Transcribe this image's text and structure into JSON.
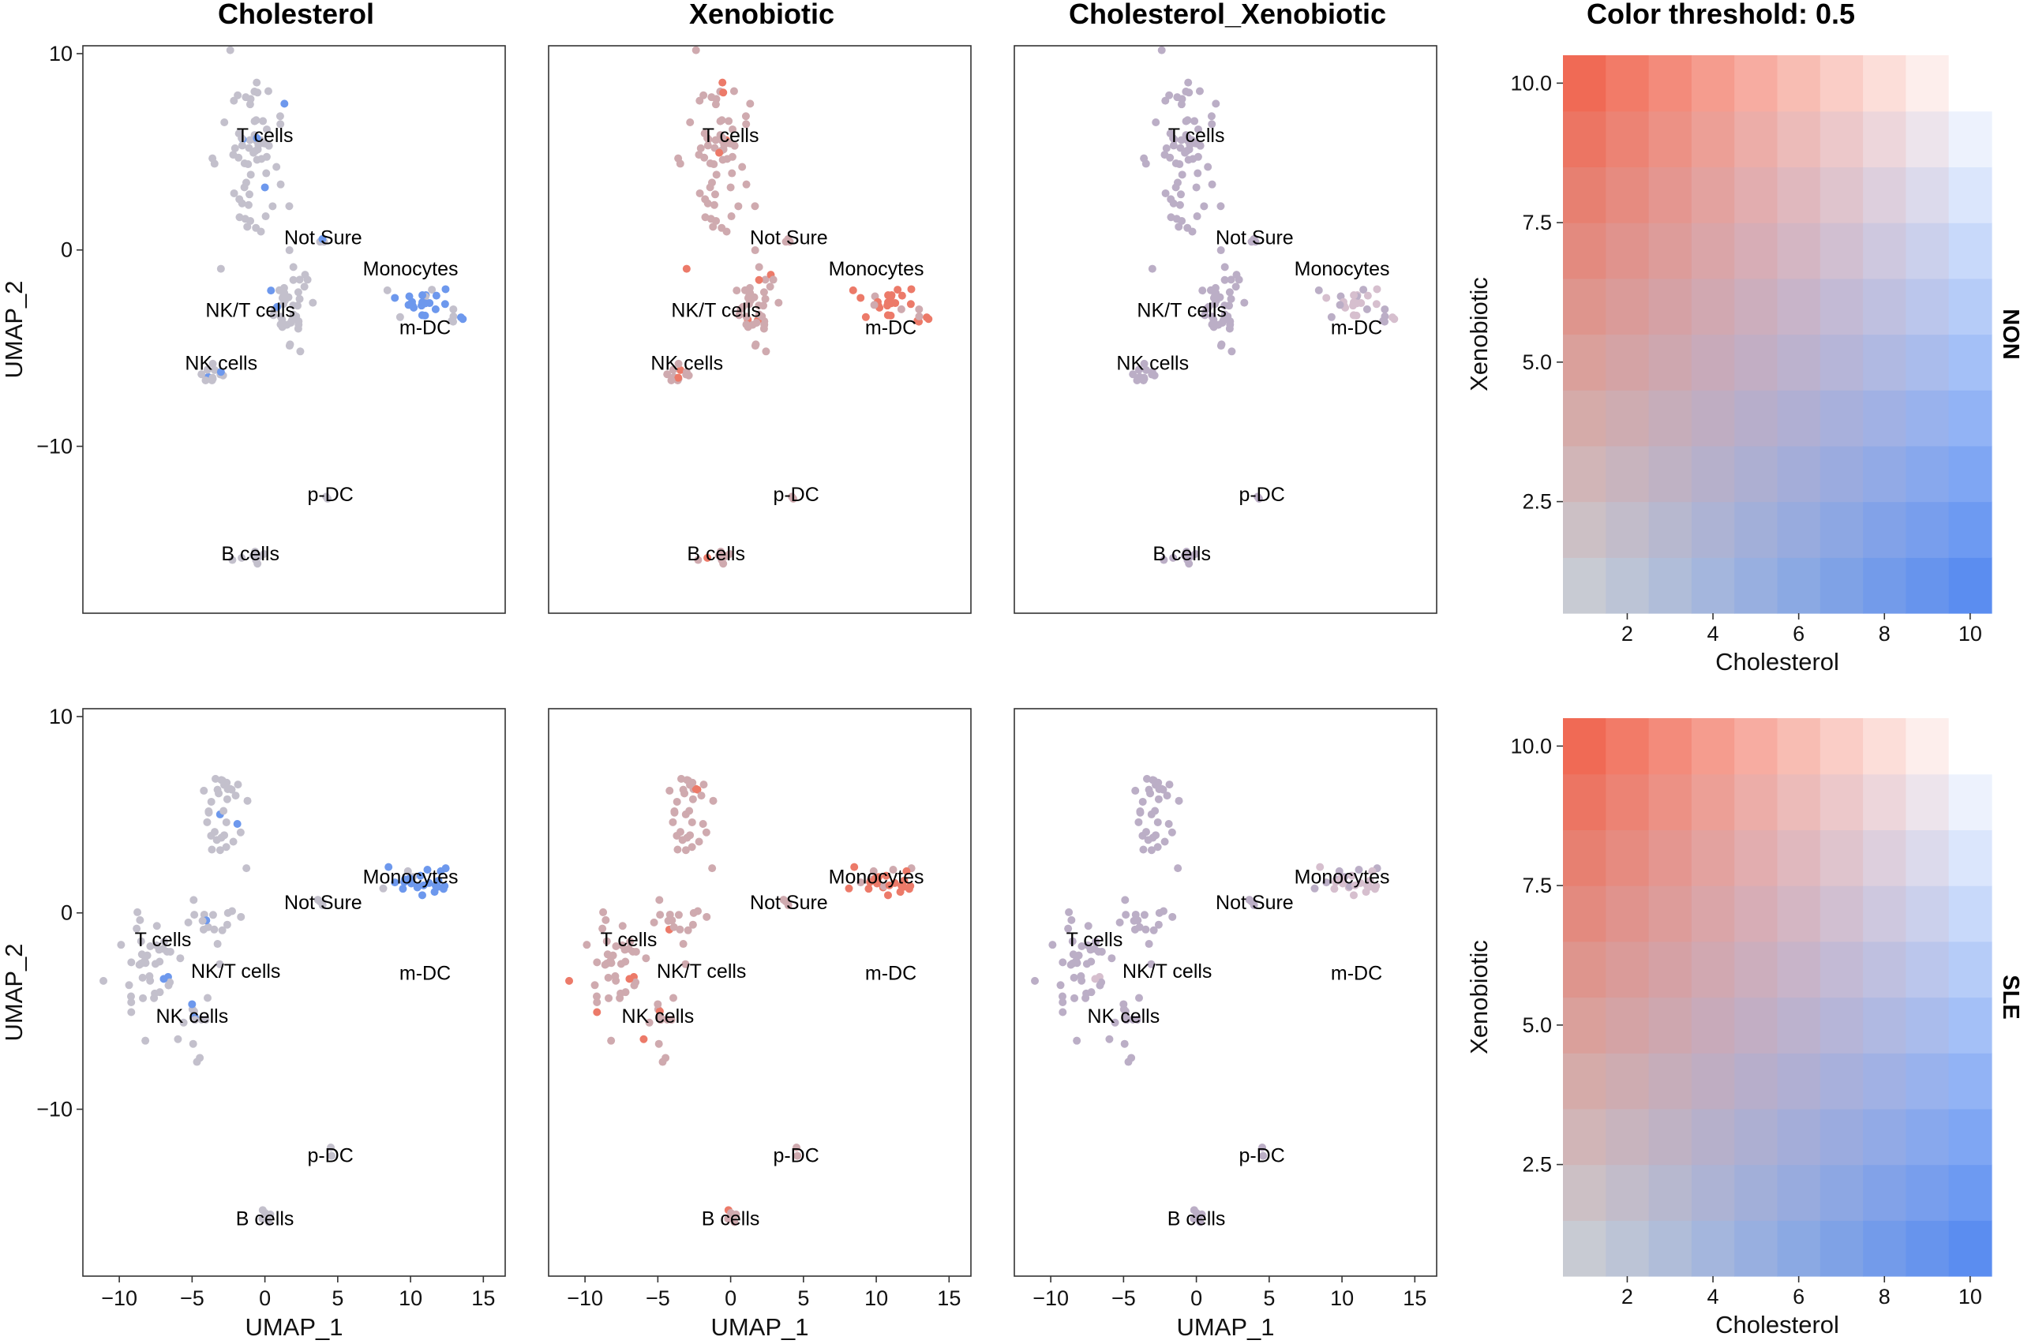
{
  "columns": [
    "Cholesterol",
    "Xenobiotic",
    "Cholesterol_Xenobiotic",
    "Color threshold: 0.5"
  ],
  "colors": {
    "gray": "#c8cbd3",
    "cholesterol": "#5b8df0",
    "xenobiotic": "#f06a55",
    "high_both": "#ffffff"
  },
  "chart_data": [
    {
      "type": "scatter",
      "kind": "umap",
      "row": "NON",
      "xlabel": "UMAP_1",
      "ylabel": "UMAP_2",
      "xlim": [
        -12.5,
        16.5
      ],
      "ylim": [
        -18.5,
        10.4
      ],
      "xticks": [
        -10,
        -5,
        0,
        5,
        10,
        15
      ],
      "xtick_labels": [
        "−10",
        "−5",
        "0",
        "5",
        "10",
        "15"
      ],
      "yticks": [
        10,
        0,
        -10
      ],
      "ytick_labels": [
        "10",
        "0",
        "−10"
      ],
      "panels": [
        "Cholesterol",
        "Xenobiotic",
        "Cholesterol_Xenobiotic"
      ],
      "clusters": [
        {
          "name": "T cells",
          "label": [
            0,
            5.5
          ],
          "center": [
            -1,
            5
          ],
          "spread": [
            2.2,
            4.4
          ],
          "n": 70,
          "chol": 0.05,
          "xeno": 0.05
        },
        {
          "name": "Not Sure",
          "label": [
            4,
            0.3
          ],
          "center": [
            4,
            0.5
          ],
          "spread": [
            0.4,
            0.3
          ],
          "n": 3,
          "chol": 0.1,
          "xeno": 0.1
        },
        {
          "name": "Monocytes",
          "label": [
            10,
            -1.3
          ],
          "center": [
            10.5,
            -2.6
          ],
          "spread": [
            2.4,
            0.9
          ],
          "n": 22,
          "chol": 0.8,
          "xeno": 0.75
        },
        {
          "name": "m-DC",
          "label": [
            11,
            -4.3
          ],
          "center": [
            13,
            -3.4
          ],
          "spread": [
            0.8,
            0.5
          ],
          "n": 6,
          "chol": 0.7,
          "xeno": 0.7
        },
        {
          "name": "NK/T cells",
          "label": [
            -1,
            -3.4
          ],
          "center": [
            1.5,
            -3
          ],
          "spread": [
            1.6,
            2.6
          ],
          "n": 38,
          "chol": 0.05,
          "xeno": 0.05
        },
        {
          "name": "NK cells",
          "label": [
            -3,
            -6.1
          ],
          "center": [
            -4,
            -6.3
          ],
          "spread": [
            1.1,
            0.8
          ],
          "n": 12,
          "chol": 0.05,
          "xeno": 0.05
        },
        {
          "name": "p-DC",
          "label": [
            4.5,
            -12.8
          ],
          "center": [
            4.3,
            -12.4
          ],
          "spread": [
            0.2,
            0.3
          ],
          "n": 2,
          "chol": 0.05,
          "xeno": 0.05
        },
        {
          "name": "B cells",
          "label": [
            -1,
            -15.8
          ],
          "center": [
            -1.2,
            -15.6
          ],
          "spread": [
            1.0,
            0.5
          ],
          "n": 8,
          "chol": 0.05,
          "xeno": 0.05
        }
      ]
    },
    {
      "type": "scatter",
      "kind": "umap",
      "row": "SLE",
      "xlabel": "UMAP_1",
      "ylabel": "UMAP_2",
      "xlim": [
        -12.5,
        16.5
      ],
      "ylim": [
        -18.5,
        10.4
      ],
      "xticks": [
        -10,
        -5,
        0,
        5,
        10,
        15
      ],
      "xtick_labels": [
        "−10",
        "−5",
        "0",
        "5",
        "10",
        "15"
      ],
      "yticks": [
        10,
        0,
        -10
      ],
      "ytick_labels": [
        "10",
        "0",
        "−10"
      ],
      "panels": [
        "Cholesterol",
        "Xenobiotic",
        "Cholesterol_Xenobiotic"
      ],
      "clusters": [
        {
          "name": "T cells",
          "label": [
            -7,
            -1.7
          ],
          "center": [
            -7.5,
            -2.6
          ],
          "spread": [
            2.2,
            2.6
          ],
          "n": 42,
          "chol": 0.12,
          "xeno": 0.12
        },
        {
          "name": "Not Sure",
          "label": [
            4,
            0.2
          ],
          "center": [
            3.7,
            0.7
          ],
          "spread": [
            0.4,
            0.3
          ],
          "n": 3,
          "chol": 0.1,
          "xeno": 0.1
        },
        {
          "name": "Monocytes",
          "label": [
            10,
            1.5
          ],
          "center": [
            11,
            1.5
          ],
          "spread": [
            2.3,
            0.8
          ],
          "n": 26,
          "chol": 0.85,
          "xeno": 0.85
        },
        {
          "name": "m-DC",
          "label": [
            11,
            -3.4
          ],
          "center": [
            11,
            -3.4
          ],
          "spread": [
            0.1,
            0.1
          ],
          "n": 0,
          "chol": 0.0,
          "xeno": 0.0
        },
        {
          "name": "NK/T cells",
          "label": [
            -2,
            -3.3
          ],
          "center": [
            -3,
            -1
          ],
          "spread": [
            1.6,
            1.6
          ],
          "n": 16,
          "chol": 0.05,
          "xeno": 0.05
        },
        {
          "name": "NK cells",
          "label": [
            -5,
            -5.6
          ],
          "center": [
            -5,
            -6
          ],
          "spread": [
            0.9,
            1.2
          ],
          "n": 12,
          "chol": 0.3,
          "xeno": 0.2
        },
        {
          "name": "p-DC",
          "label": [
            4.5,
            -12.7
          ],
          "center": [
            4.6,
            -12.4
          ],
          "spread": [
            0.2,
            0.3
          ],
          "n": 2,
          "chol": 0.05,
          "xeno": 0.05
        },
        {
          "name": "B cells",
          "label": [
            0,
            -15.9
          ],
          "center": [
            0,
            -15.4
          ],
          "spread": [
            0.6,
            0.5
          ],
          "n": 5,
          "chol": 0.05,
          "xeno": 0.05
        },
        {
          "name": "",
          "label": [
            0,
            0
          ],
          "center": [
            -3,
            5
          ],
          "spread": [
            1.8,
            2.6
          ],
          "n": 34,
          "chol": 0.05,
          "xeno": 0.05
        }
      ]
    },
    {
      "type": "heatmap",
      "row": "NON",
      "title": "Color threshold: 0.5",
      "xlabel": "Cholesterol",
      "ylabel": "Xenobiotic",
      "xlim": [
        0.5,
        10.5
      ],
      "ylim": [
        0.5,
        10.5
      ],
      "xticks": [
        2,
        4,
        6,
        8,
        10
      ],
      "xtick_labels": [
        "2",
        "4",
        "6",
        "8",
        "10"
      ],
      "yticks": [
        2.5,
        5.0,
        7.5,
        10.0
      ],
      "ytick_labels": [
        "2.5",
        "5.0",
        "7.5",
        "10.0"
      ],
      "grid_size": 10,
      "threshold": 0.5,
      "side_label": "NON"
    },
    {
      "type": "heatmap",
      "row": "SLE",
      "title": "",
      "xlabel": "Cholesterol",
      "ylabel": "Xenobiotic",
      "xlim": [
        0.5,
        10.5
      ],
      "ylim": [
        0.5,
        10.5
      ],
      "xticks": [
        2,
        4,
        6,
        8,
        10
      ],
      "xtick_labels": [
        "2",
        "4",
        "6",
        "8",
        "10"
      ],
      "yticks": [
        2.5,
        5.0,
        7.5,
        10.0
      ],
      "ytick_labels": [
        "2.5",
        "5.0",
        "7.5",
        "10.0"
      ],
      "grid_size": 10,
      "threshold": 0.5,
      "side_label": "SLE"
    }
  ]
}
